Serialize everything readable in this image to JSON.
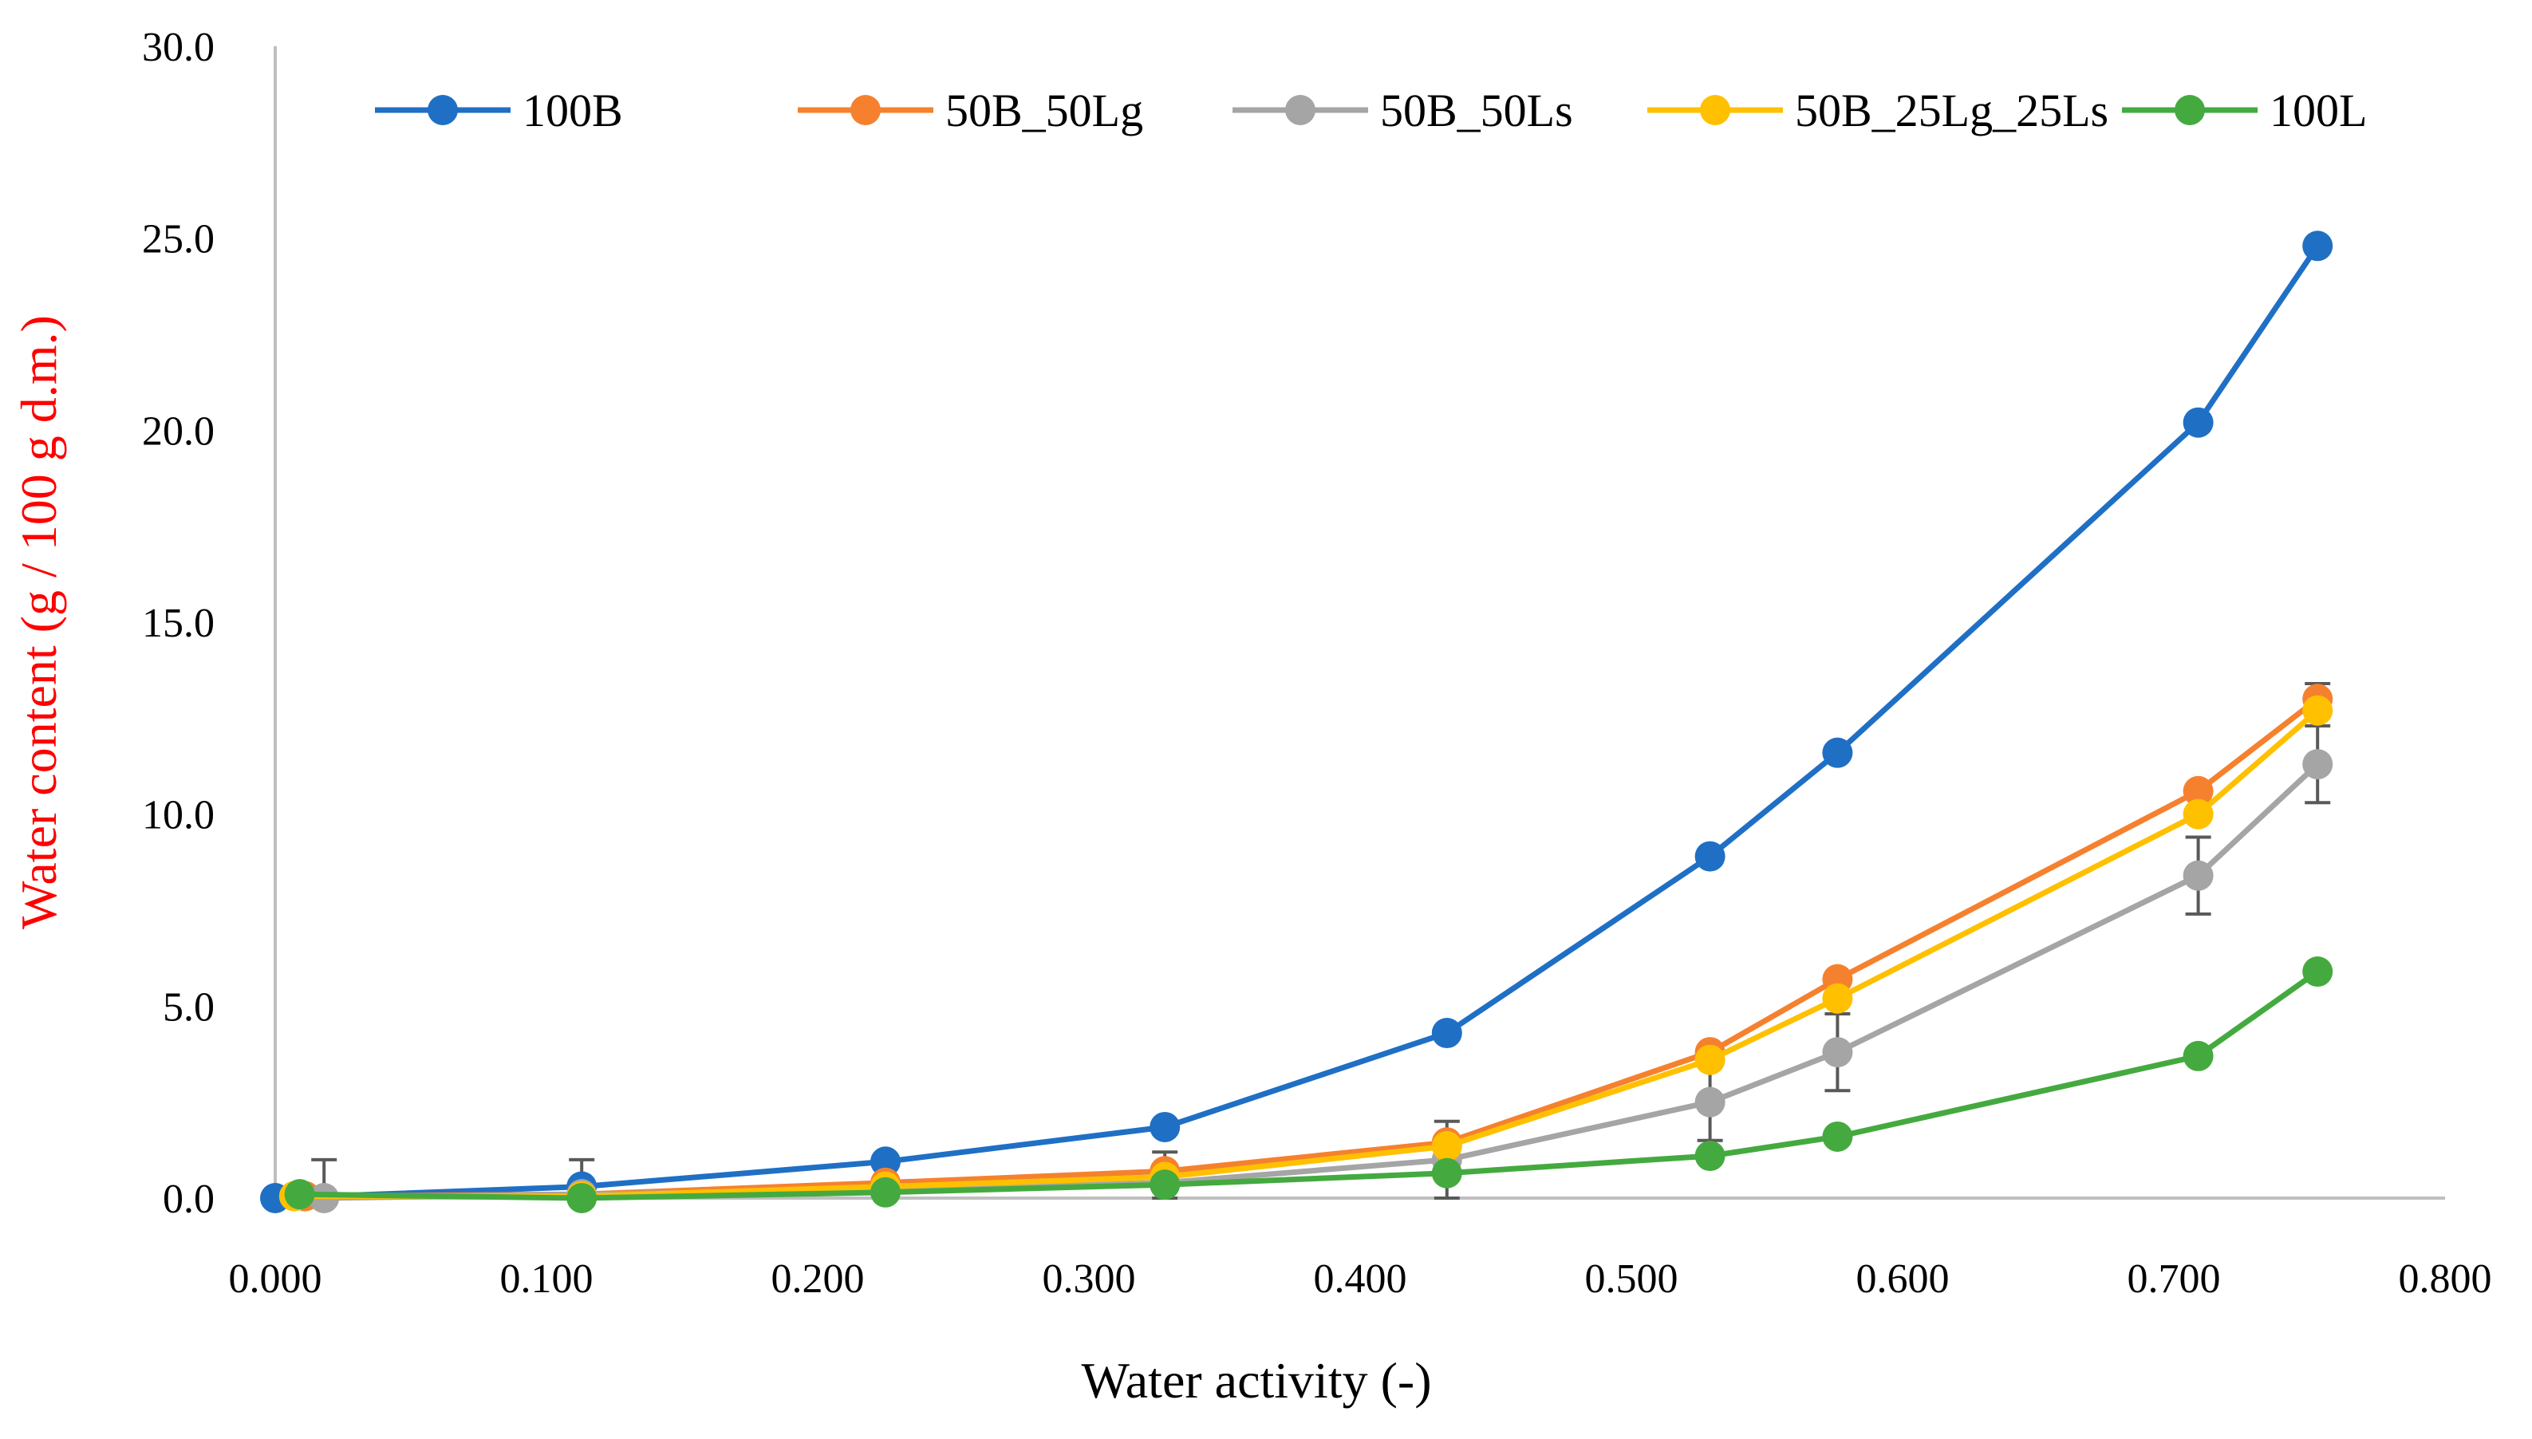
{
  "chart_data": {
    "type": "line",
    "title": "",
    "xlabel": "Water activity (-)",
    "ylabel": "Water content (g / 100 g d.m.)",
    "xlim": [
      0,
      0.8
    ],
    "ylim": [
      0,
      30
    ],
    "x_ticks": [
      "0.000",
      "0.100",
      "0.200",
      "0.300",
      "0.400",
      "0.500",
      "0.600",
      "0.700",
      "0.800"
    ],
    "y_ticks": [
      "0.0",
      "5.0",
      "10.0",
      "15.0",
      "20.0",
      "25.0",
      "30.0"
    ],
    "grid": false,
    "legend_position": "top",
    "ylabel_color": "#ff0000",
    "series": [
      {
        "name": "100B",
        "color": "#1f6fc5",
        "points": [
          [
            0.0,
            0.0
          ],
          [
            0.113,
            0.3
          ],
          [
            0.225,
            0.95
          ],
          [
            0.328,
            1.85
          ],
          [
            0.432,
            4.3
          ],
          [
            0.529,
            8.9
          ],
          [
            0.576,
            11.6
          ],
          [
            0.709,
            20.2
          ],
          [
            0.753,
            24.8
          ]
        ],
        "errors": [
          0,
          0.7,
          0,
          0,
          0,
          0,
          0,
          0,
          0
        ]
      },
      {
        "name": "50B_50Lg",
        "color": "#f5812e",
        "points": [
          [
            0.011,
            0.05
          ],
          [
            0.113,
            0.1
          ],
          [
            0.225,
            0.4
          ],
          [
            0.328,
            0.7
          ],
          [
            0.432,
            1.45
          ],
          [
            0.529,
            3.8
          ],
          [
            0.576,
            5.7
          ],
          [
            0.709,
            10.6
          ],
          [
            0.753,
            13.0
          ]
        ],
        "errors": [
          0,
          0,
          0,
          0,
          0,
          0,
          0,
          0,
          0.4
        ]
      },
      {
        "name": "50B_50Ls",
        "color": "#a5a5a5",
        "points": [
          [
            0.018,
            0.0
          ],
          [
            0.113,
            0.1
          ],
          [
            0.225,
            0.2
          ],
          [
            0.328,
            0.4
          ],
          [
            0.432,
            1.0
          ],
          [
            0.529,
            2.5
          ],
          [
            0.576,
            3.8
          ],
          [
            0.709,
            8.4
          ],
          [
            0.753,
            11.3
          ]
        ],
        "errors": [
          1.0,
          0,
          0,
          0.8,
          1.0,
          1.0,
          1.0,
          1.0,
          1.0
        ]
      },
      {
        "name": "50B_25Lg_25Ls",
        "color": "#ffc000",
        "points": [
          [
            0.007,
            0.05
          ],
          [
            0.113,
            0.05
          ],
          [
            0.225,
            0.3
          ],
          [
            0.328,
            0.55
          ],
          [
            0.432,
            1.35
          ],
          [
            0.529,
            3.6
          ],
          [
            0.576,
            5.2
          ],
          [
            0.709,
            10.0
          ],
          [
            0.753,
            12.7
          ]
        ],
        "errors": [
          0,
          0,
          0,
          0,
          0,
          0,
          0,
          0,
          0
        ]
      },
      {
        "name": "100L",
        "color": "#44aa3f",
        "points": [
          [
            0.009,
            0.1
          ],
          [
            0.113,
            0.0
          ],
          [
            0.225,
            0.15
          ],
          [
            0.328,
            0.35
          ],
          [
            0.432,
            0.65
          ],
          [
            0.529,
            1.1
          ],
          [
            0.576,
            1.6
          ],
          [
            0.709,
            3.7
          ],
          [
            0.753,
            5.9
          ]
        ],
        "errors": [
          0,
          0,
          0,
          0,
          0,
          0,
          0,
          0,
          0
        ]
      }
    ]
  }
}
